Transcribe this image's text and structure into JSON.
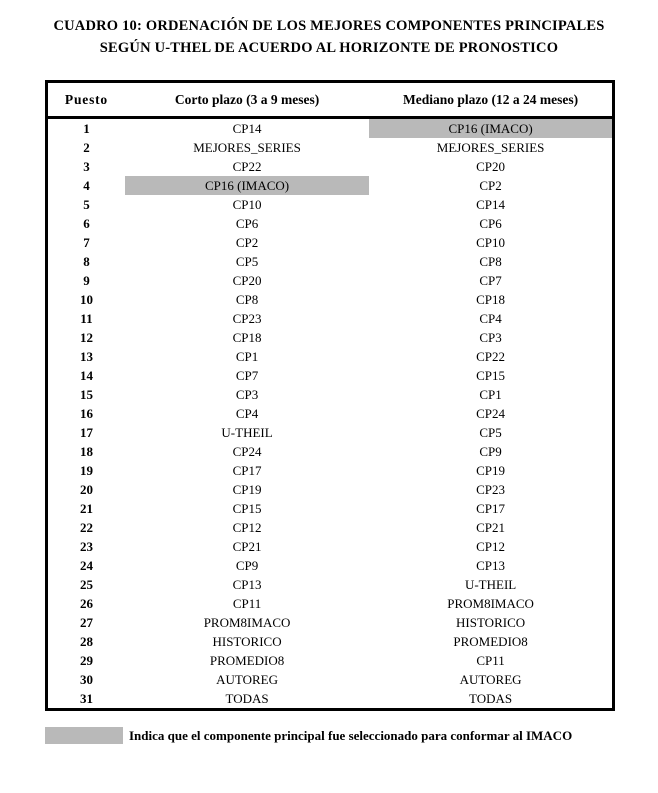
{
  "title": {
    "line1": "CUADRO 10: ORDENACIÓN DE LOS MEJORES COMPONENTES PRINCIPALES",
    "line2": "SEGÚN U-THEL DE ACUERDO AL HORIZONTE DE PRONOSTICO"
  },
  "table": {
    "headers": {
      "puesto": "Puesto",
      "corto": "Corto plazo (3 a 9 meses)",
      "mediano": "Mediano plazo (12 a 24 meses)"
    },
    "rows": [
      {
        "puesto": "1",
        "corto": "CP14",
        "corto_hl": false,
        "mediano": "CP16 (IMACO)",
        "mediano_hl": true
      },
      {
        "puesto": "2",
        "corto": "MEJORES_SERIES",
        "corto_hl": false,
        "mediano": "MEJORES_SERIES",
        "mediano_hl": false
      },
      {
        "puesto": "3",
        "corto": "CP22",
        "corto_hl": false,
        "mediano": "CP20",
        "mediano_hl": false
      },
      {
        "puesto": "4",
        "corto": "CP16 (IMACO)",
        "corto_hl": true,
        "mediano": "CP2",
        "mediano_hl": false
      },
      {
        "puesto": "5",
        "corto": "CP10",
        "corto_hl": false,
        "mediano": "CP14",
        "mediano_hl": false
      },
      {
        "puesto": "6",
        "corto": "CP6",
        "corto_hl": false,
        "mediano": "CP6",
        "mediano_hl": false
      },
      {
        "puesto": "7",
        "corto": "CP2",
        "corto_hl": false,
        "mediano": "CP10",
        "mediano_hl": false
      },
      {
        "puesto": "8",
        "corto": "CP5",
        "corto_hl": false,
        "mediano": "CP8",
        "mediano_hl": false
      },
      {
        "puesto": "9",
        "corto": "CP20",
        "corto_hl": false,
        "mediano": "CP7",
        "mediano_hl": false
      },
      {
        "puesto": "10",
        "corto": "CP8",
        "corto_hl": false,
        "mediano": "CP18",
        "mediano_hl": false
      },
      {
        "puesto": "11",
        "corto": "CP23",
        "corto_hl": false,
        "mediano": "CP4",
        "mediano_hl": false
      },
      {
        "puesto": "12",
        "corto": "CP18",
        "corto_hl": false,
        "mediano": "CP3",
        "mediano_hl": false
      },
      {
        "puesto": "13",
        "corto": "CP1",
        "corto_hl": false,
        "mediano": "CP22",
        "mediano_hl": false
      },
      {
        "puesto": "14",
        "corto": "CP7",
        "corto_hl": false,
        "mediano": "CP15",
        "mediano_hl": false
      },
      {
        "puesto": "15",
        "corto": "CP3",
        "corto_hl": false,
        "mediano": "CP1",
        "mediano_hl": false
      },
      {
        "puesto": "16",
        "corto": "CP4",
        "corto_hl": false,
        "mediano": "CP24",
        "mediano_hl": false
      },
      {
        "puesto": "17",
        "corto": "U-THEIL",
        "corto_hl": false,
        "mediano": "CP5",
        "mediano_hl": false
      },
      {
        "puesto": "18",
        "corto": "CP24",
        "corto_hl": false,
        "mediano": "CP9",
        "mediano_hl": false
      },
      {
        "puesto": "19",
        "corto": "CP17",
        "corto_hl": false,
        "mediano": "CP19",
        "mediano_hl": false
      },
      {
        "puesto": "20",
        "corto": "CP19",
        "corto_hl": false,
        "mediano": "CP23",
        "mediano_hl": false
      },
      {
        "puesto": "21",
        "corto": "CP15",
        "corto_hl": false,
        "mediano": "CP17",
        "mediano_hl": false
      },
      {
        "puesto": "22",
        "corto": "CP12",
        "corto_hl": false,
        "mediano": "CP21",
        "mediano_hl": false
      },
      {
        "puesto": "23",
        "corto": "CP21",
        "corto_hl": false,
        "mediano": "CP12",
        "mediano_hl": false
      },
      {
        "puesto": "24",
        "corto": "CP9",
        "corto_hl": false,
        "mediano": "CP13",
        "mediano_hl": false
      },
      {
        "puesto": "25",
        "corto": "CP13",
        "corto_hl": false,
        "mediano": "U-THEIL",
        "mediano_hl": false
      },
      {
        "puesto": "26",
        "corto": "CP11",
        "corto_hl": false,
        "mediano": "PROM8IMACO",
        "mediano_hl": false
      },
      {
        "puesto": "27",
        "corto": "PROM8IMACO",
        "corto_hl": false,
        "mediano": "HISTORICO",
        "mediano_hl": false
      },
      {
        "puesto": "28",
        "corto": "HISTORICO",
        "corto_hl": false,
        "mediano": "PROMEDIO8",
        "mediano_hl": false
      },
      {
        "puesto": "29",
        "corto": "PROMEDIO8",
        "corto_hl": false,
        "mediano": "CP11",
        "mediano_hl": false
      },
      {
        "puesto": "30",
        "corto": "AUTOREG",
        "corto_hl": false,
        "mediano": "AUTOREG",
        "mediano_hl": false
      },
      {
        "puesto": "31",
        "corto": "TODAS",
        "corto_hl": false,
        "mediano": "TODAS",
        "mediano_hl": false
      }
    ]
  },
  "legend": {
    "text": "Indica que el componente principal fue seleccionado para conformar al IMACO"
  },
  "colors": {
    "highlight": "#b9b9b9",
    "border": "#000000",
    "background": "#ffffff"
  }
}
